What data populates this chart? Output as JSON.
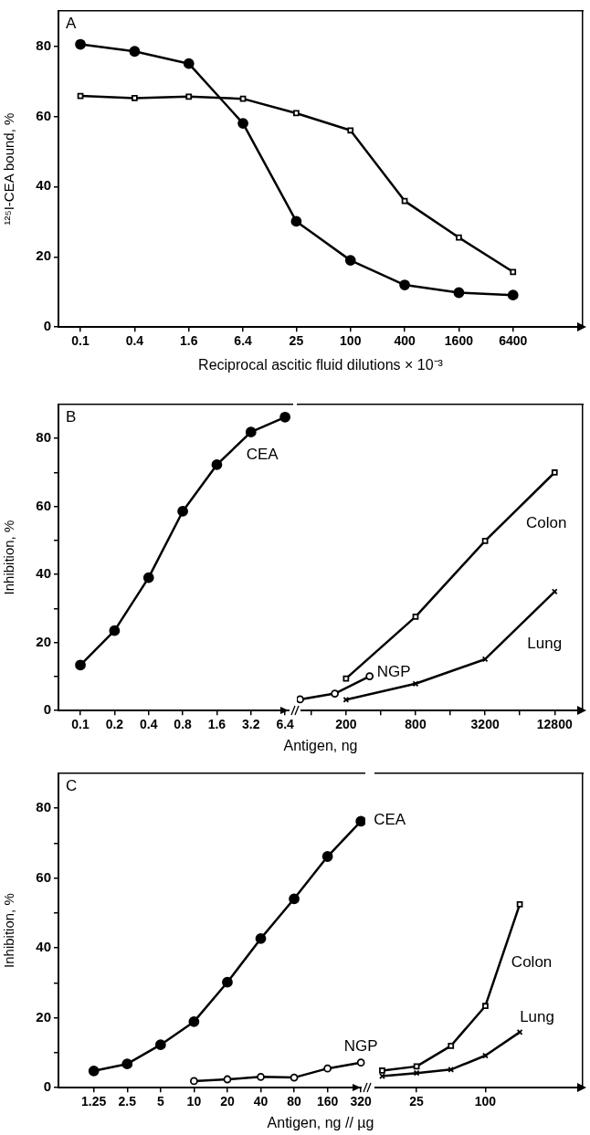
{
  "chart_data": [
    {
      "type": "line",
      "title": "A",
      "xlabel": "Reciprocal ascitic fluid dilutions × 10⁻³",
      "ylabel": "¹²⁵I-CEA bound, %",
      "log": "x",
      "grid": false,
      "legend": false,
      "line_style": "solid",
      "xlim": [
        0.057,
        38000
      ],
      "xticks": [
        0.1,
        0.4,
        1.6,
        6.4,
        25,
        100,
        400,
        1600,
        6400
      ],
      "ylim": [
        0,
        90
      ],
      "yticks": [
        0,
        20,
        40,
        60,
        80
      ],
      "x": [
        0.1,
        0.4,
        1.6,
        6.4,
        25,
        100,
        400,
        1600,
        6400
      ],
      "series": [
        {
          "color": "#000000",
          "marker": "circle",
          "values": [
            80.5,
            78.5,
            75.0,
            58.0,
            30.1,
            19.0,
            12.0,
            9.8,
            9.1
          ]
        },
        {
          "color": "#000000",
          "marker": "square",
          "values": [
            65.8,
            65.2,
            65.6,
            65.0,
            60.9,
            56.0,
            35.9,
            25.5,
            15.7
          ]
        }
      ]
    },
    {
      "type": "line",
      "title": "B",
      "xlabel": "Antigen, ng",
      "ylabel": "Inhibition, %",
      "log": "x",
      "grid": false,
      "legend": false,
      "line_style": "solid",
      "xlim": [
        0.064,
        7.5
      ],
      "xticks": [
        0.1,
        0.2,
        0.4,
        0.8,
        1.6,
        3.2,
        6.4
      ],
      "ylim": [
        0,
        90
      ],
      "yticks": [
        0,
        {
          "value": 10,
          "label": null
        },
        20,
        {
          "value": 30,
          "label": null
        },
        40,
        {
          "value": 50,
          "label": null
        },
        60,
        {
          "value": 70,
          "label": null
        },
        80
      ],
      "series": [
        {
          "name": "CEA",
          "color": "#000000",
          "marker": "circle",
          "x": [
            0.1,
            0.2,
            0.4,
            0.8,
            1.6,
            3.2,
            6.4
          ],
          "values": [
            13.4,
            23.5,
            39.1,
            58.6,
            72.3,
            81.9,
            86.3
          ]
        }
      ]
    },
    {
      "type": "line",
      "tick_labels": "x",
      "log": "x",
      "grid": false,
      "legend": false,
      "line_style": "solid",
      "xlim": [
        75,
        22400
      ],
      "xticks": [
        {
          "value": 100,
          "label": null
        },
        200,
        {
          "value": 400,
          "label": null
        },
        800,
        {
          "value": 1600,
          "label": null
        },
        3200,
        {
          "value": 6400,
          "label": null
        },
        12800
      ],
      "ylim": [
        0,
        90
      ],
      "series": [
        {
          "name": "Colon",
          "color": "#000000",
          "marker": "square",
          "x": [
            200,
            800,
            3200,
            12800
          ],
          "values": [
            9.4,
            27.6,
            49.9,
            70.0
          ]
        },
        {
          "name": "Lung",
          "color": "#000000",
          "marker": "cross",
          "x": [
            200,
            800,
            3200,
            12800
          ],
          "values": [
            3.2,
            7.9,
            15.1,
            35.0
          ]
        },
        {
          "name": "NGP",
          "color": "#000000",
          "marker": "circle",
          "x": [
            80,
            160,
            320
          ],
          "values": [
            3.3,
            5.0,
            10.1
          ]
        }
      ]
    },
    {
      "type": "line",
      "title": "C",
      "xlabel": "Antigen, ng // µg",
      "ylabel": "Inhibition, %",
      "log": "x",
      "grid": false,
      "legend": false,
      "line_style": "solid",
      "xlim": [
        0.6,
        350
      ],
      "xticks": [
        1.25,
        2.5,
        5,
        10,
        20,
        40,
        80,
        160,
        320
      ],
      "ylim": [
        0,
        90
      ],
      "yticks": [
        0,
        {
          "value": 10,
          "label": null
        },
        20,
        {
          "value": 30,
          "label": null
        },
        40,
        {
          "value": 50,
          "label": null
        },
        60,
        {
          "value": 70,
          "label": null
        },
        80
      ],
      "series": [
        {
          "name": "CEA",
          "color": "#000000",
          "marker": "circle",
          "x": [
            1.25,
            2.5,
            5,
            10,
            20,
            40,
            80,
            160,
            320
          ],
          "values": [
            4.8,
            6.8,
            12.3,
            18.9,
            30.2,
            42.7,
            54.1,
            66.2,
            76.3
          ]
        },
        {
          "name": "NGP",
          "color": "#000000",
          "marker": "circle",
          "x": [
            10,
            20,
            40,
            80,
            160,
            320
          ],
          "values": [
            1.9,
            2.4,
            3.1,
            2.9,
            5.5,
            7.2
          ]
        }
      ]
    },
    {
      "type": "line",
      "tick_labels": "x",
      "log": "x",
      "grid": false,
      "legend": false,
      "line_style": "solid",
      "xlim": [
        10.7,
        711
      ],
      "xticks": [
        25,
        100
      ],
      "ylim": [
        0,
        90
      ],
      "series": [
        {
          "name": "Colon",
          "color": "#000000",
          "marker": "square",
          "x": [
            12.5,
            25,
            50,
            100,
            200
          ],
          "values": [
            4.9,
            6.1,
            12.0,
            23.4,
            52.5
          ]
        },
        {
          "name": "Lung",
          "color": "#000000",
          "marker": "cross",
          "x": [
            12.5,
            25,
            50,
            100,
            200
          ],
          "values": [
            3.3,
            4.2,
            5.2,
            9.2,
            15.9
          ]
        }
      ]
    }
  ]
}
